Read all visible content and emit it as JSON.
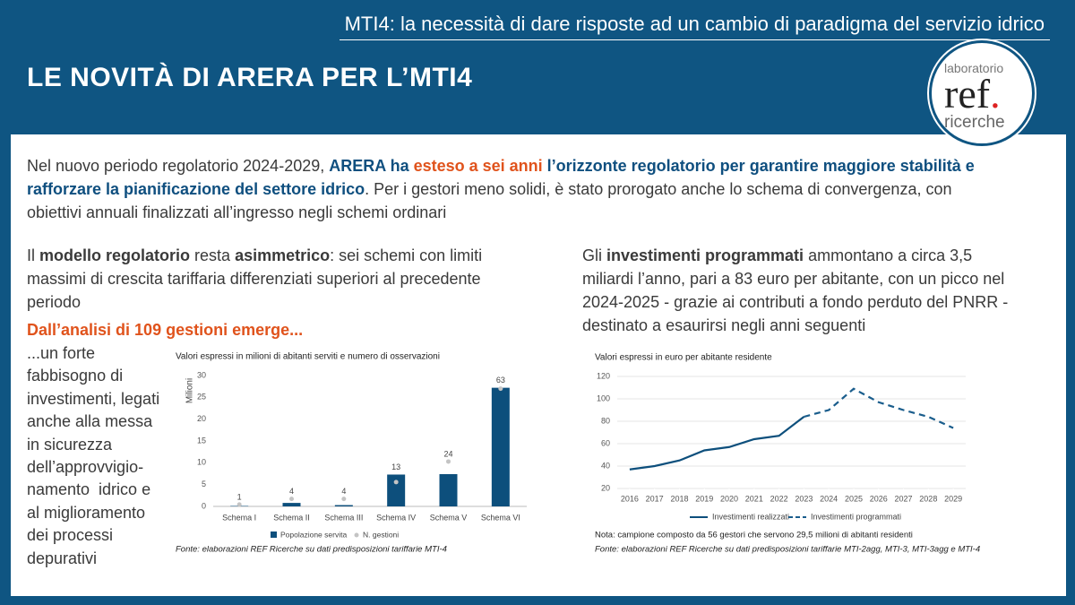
{
  "header": {
    "topic": "MTI4: la necessità di dare risposte ad un cambio di paradigma del servizio idrico",
    "title": "LE NOVITÀ DI ARERA PER L’MTI4"
  },
  "logo": [
    "laboratorio",
    "ref",
    ".",
    "ricerche"
  ],
  "intro": [
    "Nel nuovo periodo regolatorio 2024-2029, ",
    "ARERA ha ",
    "esteso a sei anni",
    " l’orizzonte regolatorio per garantire maggiore stabilità e rafforzare la pianificazione del settore idrico",
    ". Per i gestori meno solidi, è stato prorogato anche lo schema di convergenza, con obiettivi annuali finalizzati all’ingresso negli schemi ordinari"
  ],
  "left": {
    "text": [
      "Il ",
      "modello regolatorio",
      " resta ",
      "asimmetrico",
      ": sei schemi con limiti massimi di crescita tariffaria differenziati superiori al precedente periodo"
    ],
    "highlight": "Dall’analisi di 109 gestioni emerge...",
    "side": [
      "...un forte",
      "fabbisogno di",
      "investimenti, legati",
      "anche alla messa",
      "in sicurezza",
      "dell’approvvigio-",
      "namento  idrico e",
      "al miglioramento",
      "dei processi",
      "depurativi"
    ]
  },
  "right": {
    "text": [
      "Gli ",
      "investimenti programmati",
      " ammontano a circa 3,5 miliardi l’anno, pari a 83 euro per abitante, con un picco nel 2024-2025 - grazie ai contributi a fondo perduto del PNRR - destinato a esaurirsi negli anni seguenti"
    ]
  },
  "chart_data": [
    {
      "type": "bar",
      "subtitle": "Valori espressi in milioni di abitanti serviti e numero di osservazioni",
      "ylabel": "Milioni",
      "categories": [
        "Schema I",
        "Schema II",
        "Schema III",
        "Schema IV",
        "Schema V",
        "Schema VI"
      ],
      "series": [
        {
          "name": "Popolazione servita",
          "color": "#0d4f7c",
          "values": [
            0.1,
            0.8,
            0.3,
            7.3,
            7.4,
            27.2
          ]
        },
        {
          "name": "N. gestioni",
          "color": "#c4c4c4",
          "axis": "y2",
          "values": [
            1,
            4,
            4,
            13,
            24,
            63
          ]
        }
      ],
      "ylim": [
        0,
        30
      ],
      "yticks": [
        0,
        5,
        10,
        15,
        20,
        25,
        30
      ],
      "y2lim": [
        0,
        70
      ],
      "source": "Fonte: elaborazioni REF Ricerche su dati predisposizioni tariffarie MTI-4"
    },
    {
      "type": "line",
      "subtitle": "Valori espressi in euro per abitante residente",
      "x": [
        2016,
        2017,
        2018,
        2019,
        2020,
        2021,
        2022,
        2023,
        2024,
        2025,
        2026,
        2027,
        2028,
        2029
      ],
      "series": [
        {
          "name": "Investimenti realizzati",
          "color": "#0d4f7c",
          "style": "solid",
          "values": [
            37,
            40,
            45,
            54,
            57,
            64,
            67,
            84,
            null,
            null,
            null,
            null,
            null,
            null
          ]
        },
        {
          "name": "Investimenti programmati",
          "color": "#1a5d8c",
          "style": "dashed",
          "values": [
            null,
            null,
            null,
            null,
            null,
            null,
            null,
            84,
            90,
            109,
            97,
            90,
            84,
            74
          ]
        }
      ],
      "xlim": [
        2015.5,
        2029.5
      ],
      "xticks": [
        2016,
        2017,
        2018,
        2019,
        2020,
        2021,
        2022,
        2023,
        2024,
        2025,
        2026,
        2027,
        2028,
        2029
      ],
      "ylim": [
        20,
        120
      ],
      "yticks": [
        20,
        40,
        60,
        80,
        100,
        120
      ],
      "grid": true,
      "note": "Nota: campione composto da 56 gestori che servono 29,5 milioni di abitanti residenti",
      "source": "Fonte: elaborazioni REF Ricerche su dati predisposizioni tariffarie MTI-2agg, MTI-3, MTI-3agg e MTI-4"
    }
  ]
}
